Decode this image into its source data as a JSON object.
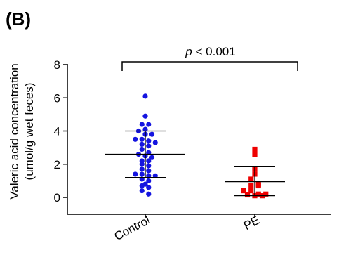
{
  "panel_label": "(B)",
  "chart_data": {
    "type": "scatter",
    "ylabel_line1": "Valeric acid concentration",
    "ylabel_line2": "(umol/g wet feces)",
    "ylim": [
      0,
      8
    ],
    "yticks": [
      "0",
      "2",
      "4",
      "6",
      "8"
    ],
    "categories": [
      "Control",
      "PE"
    ],
    "colors": {
      "Control": "#1414e0",
      "PE": "#ee0000"
    },
    "series": [
      {
        "category": "Control",
        "marker": "circle",
        "mean": 2.6,
        "sd_upper": 4.0,
        "sd_lower": 1.2,
        "values": [
          6.1,
          4.9,
          4.4,
          4.4,
          4.1,
          4.0,
          3.8,
          3.8,
          3.5,
          3.5,
          3.4,
          3.3,
          3.2,
          3.1,
          2.9,
          2.7,
          2.6,
          2.5,
          2.4,
          2.2,
          2.2,
          2.0,
          1.9,
          1.7,
          1.6,
          1.4,
          1.4,
          1.3,
          1.3,
          1.1,
          1.0,
          0.8,
          0.7,
          0.6,
          0.4,
          0.2
        ]
      },
      {
        "category": "PE",
        "marker": "square",
        "mean": 0.95,
        "sd_upper": 1.85,
        "sd_lower": 0.1,
        "values": [
          2.9,
          2.6,
          1.7,
          1.4,
          1.1,
          0.8,
          0.7,
          0.7,
          0.4,
          0.4,
          0.2,
          0.2,
          0.15,
          0.1,
          0.1
        ]
      }
    ],
    "annotation": {
      "p_italic": "p",
      "p_rest": " < 0.001"
    }
  }
}
